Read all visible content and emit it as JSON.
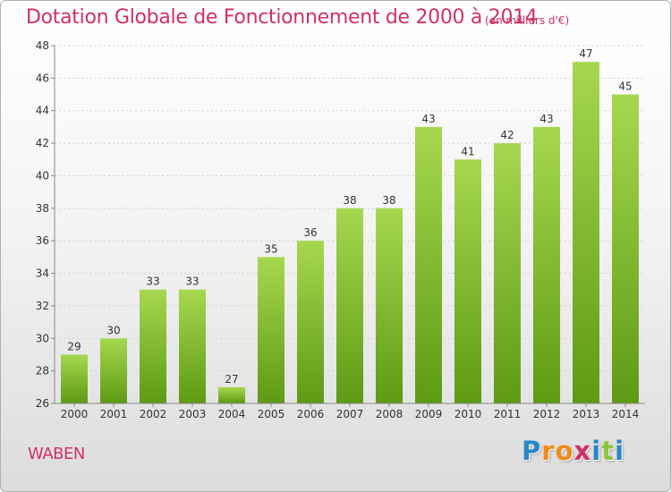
{
  "header": {
    "title": "Dotation Globale de Fonctionnement de 2000 à 2014",
    "subtitle": "(en milliers d'€)"
  },
  "footer": {
    "commune": "WABEN",
    "logo_letters": [
      "P",
      "r",
      "o",
      "x",
      "i",
      "t",
      "i"
    ],
    "logo_colors": [
      "#2a86c8",
      "#f08a1c",
      "#f08a1c",
      "#d0306a",
      "#2a86c8",
      "#8cc63f",
      "#2a86c8"
    ]
  },
  "colors": {
    "title": "#d0306a",
    "bar_light": "#a6d84f",
    "bar_dark": "#5e9a14",
    "axis": "#888888",
    "grid": "#cfcfcf"
  },
  "chart_data": {
    "type": "bar",
    "categories": [
      "2000",
      "2001",
      "2002",
      "2003",
      "2004",
      "2005",
      "2006",
      "2007",
      "2008",
      "2009",
      "2010",
      "2011",
      "2012",
      "2013",
      "2014"
    ],
    "values": [
      29,
      30,
      33,
      33,
      27,
      35,
      36,
      38,
      38,
      43,
      41,
      42,
      43,
      47,
      45
    ],
    "data_labels": [
      "29",
      "30",
      "33",
      "33",
      "27",
      "35",
      "36",
      "38",
      "38",
      "43",
      "41",
      "42",
      "43",
      "47",
      "45"
    ],
    "ylim": [
      26,
      48
    ],
    "yticks": [
      "26",
      "28",
      "30",
      "32",
      "34",
      "36",
      "38",
      "40",
      "42",
      "44",
      "46",
      "48"
    ],
    "grid": true,
    "title": "Dotation Globale de Fonctionnement de 2000 à 2014",
    "xlabel": "",
    "ylabel": ""
  }
}
